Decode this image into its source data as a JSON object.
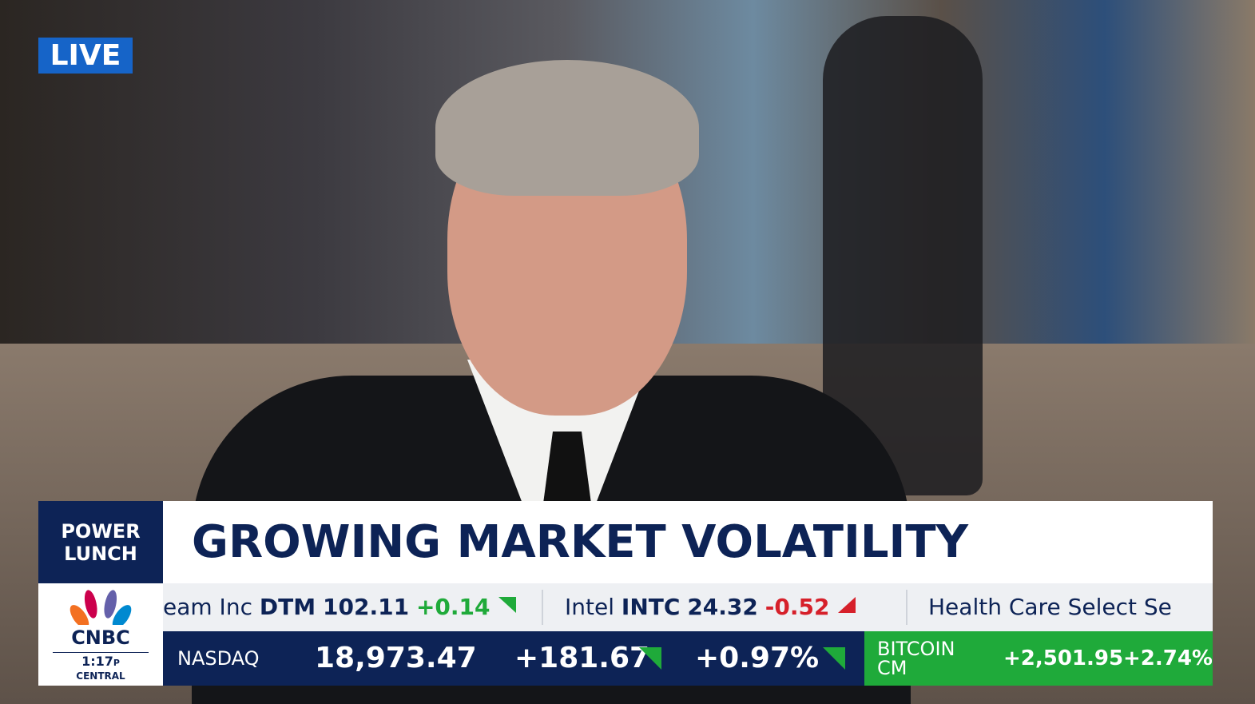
{
  "live_badge": "LIVE",
  "show": {
    "name_line1": "POWER",
    "name_line2": "LUNCH"
  },
  "headline": "GROWING MARKET VOLATILITY",
  "network": {
    "logo": "CNBC",
    "time": "1:17",
    "time_suffix": "P",
    "zone": "CENTRAL"
  },
  "ticker": [
    {
      "name": "eam Inc",
      "symbol": "DTM",
      "price": "102.11",
      "change": "+0.14"
    },
    {
      "name": "Intel",
      "symbol": "INTC",
      "price": "24.32",
      "change": "-0.52"
    },
    {
      "name": "Health Care Select Se"
    }
  ],
  "index_bar": {
    "name": "NASDAQ",
    "value": "18,973.47",
    "change": "+181.67",
    "pct": "+0.97%"
  },
  "crypto": {
    "name_line1": "BITCOIN",
    "name_line2": "CM",
    "change": "+2,501.95",
    "pct": "+2.74%"
  }
}
